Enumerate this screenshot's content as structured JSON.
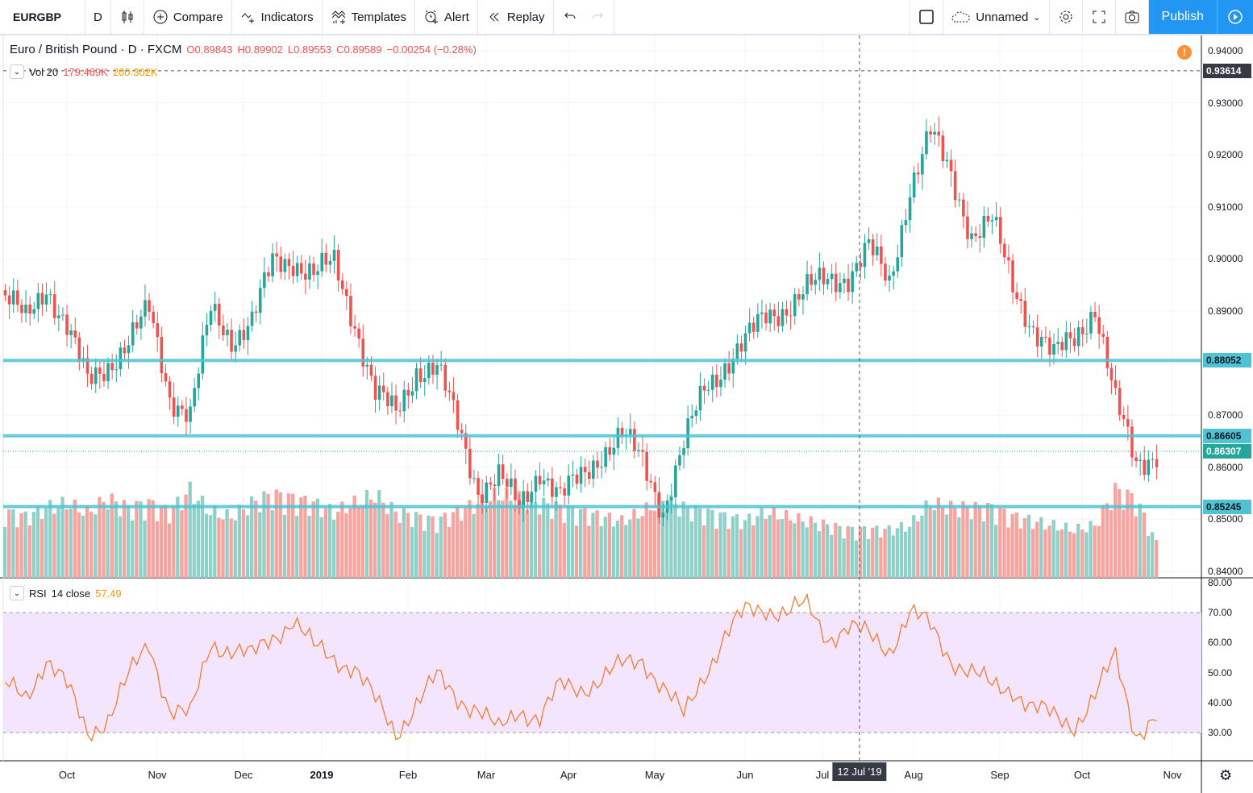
{
  "toolbar": {
    "symbol": "EURGBP",
    "interval": "D",
    "compare": "Compare",
    "indicators": "Indicators",
    "templates": "Templates",
    "alert": "Alert",
    "replay": "Replay",
    "layout_name": "Unnamed",
    "publish": "Publish"
  },
  "legend": {
    "title": "Euro / British Pound · D · FXCM",
    "open": "O0.89843",
    "high": "H0.89902",
    "low": "L0.89553",
    "close": "C0.89589",
    "change": "−0.00254 (−0.28%)"
  },
  "volume_legend": {
    "name": "Vol 20",
    "value": "179.469K",
    "ma": "200.302K"
  },
  "rsi_legend": {
    "name": "RSI",
    "params": "14 close",
    "value": "57.49"
  },
  "price_axis": [
    "0.94000",
    "0.93000",
    "0.92000",
    "0.91000",
    "0.90000",
    "0.89000",
    "0.87000",
    "0.86000",
    "0.85000",
    "0.84000"
  ],
  "rsi_axis": [
    "80.00",
    "70.00",
    "60.00",
    "50.00",
    "40.00",
    "30.00"
  ],
  "time_axis": [
    "Oct",
    "Nov",
    "Dec",
    "2019",
    "Feb",
    "Mar",
    "Apr",
    "May",
    "Jun",
    "Jul",
    "Aug",
    "Sep",
    "Oct",
    "Nov"
  ],
  "crosshair": {
    "price": "0.93614",
    "date": "12 Jul '19"
  },
  "horizontal_lines": [
    {
      "price": "0.88052"
    },
    {
      "price": "0.86605"
    },
    {
      "price": "0.85245"
    }
  ],
  "last_price": "0.86307",
  "colors": {
    "up": "#26a69a",
    "down": "#ef5350",
    "hline": "#4fc3d4",
    "rsi": "#f57c32",
    "rsi_band": "#f3e5fd",
    "accent": "#2196f3"
  },
  "chart_data": {
    "type": "candlestick",
    "interval": "weekly-sampled closes",
    "ylim": [
      0.84,
      0.94
    ],
    "closes": [
      0.893,
      0.888,
      0.895,
      0.887,
      0.876,
      0.88,
      0.884,
      0.89,
      0.874,
      0.87,
      0.89,
      0.885,
      0.888,
      0.899,
      0.9,
      0.897,
      0.899,
      0.888,
      0.874,
      0.87,
      0.879,
      0.879,
      0.868,
      0.856,
      0.858,
      0.852,
      0.86,
      0.854,
      0.858,
      0.863,
      0.866,
      0.861,
      0.852,
      0.864,
      0.875,
      0.88,
      0.884,
      0.889,
      0.891,
      0.894,
      0.896,
      0.897,
      0.902,
      0.895,
      0.914,
      0.924,
      0.916,
      0.905,
      0.907,
      0.895,
      0.887,
      0.881,
      0.885,
      0.891,
      0.872,
      0.861,
      0.863
    ],
    "volume_k": [
      150,
      140,
      160,
      170,
      150,
      180,
      160,
      170,
      150,
      200,
      150,
      140,
      170,
      190,
      180,
      170,
      150,
      170,
      190,
      150,
      140,
      130,
      150,
      170,
      190,
      180,
      170,
      160,
      150,
      140,
      130,
      150,
      180,
      160,
      150,
      140,
      130,
      150,
      140,
      130,
      120,
      110,
      110,
      110,
      120,
      170,
      160,
      160,
      160,
      140,
      130,
      120,
      110,
      120,
      200,
      180,
      80
    ],
    "rsi": [
      45,
      42,
      55,
      45,
      30,
      35,
      48,
      60,
      38,
      35,
      60,
      58,
      55,
      62,
      68,
      58,
      55,
      52,
      40,
      30,
      40,
      48,
      42,
      38,
      30,
      38,
      35,
      45,
      45,
      48,
      52,
      55,
      45,
      35,
      50,
      62,
      70,
      72,
      70,
      72,
      62,
      65,
      62,
      58,
      70,
      65,
      55,
      50,
      45,
      45,
      38,
      35,
      33,
      42,
      55,
      30,
      35
    ],
    "rsi_levels": [
      70,
      30
    ]
  }
}
